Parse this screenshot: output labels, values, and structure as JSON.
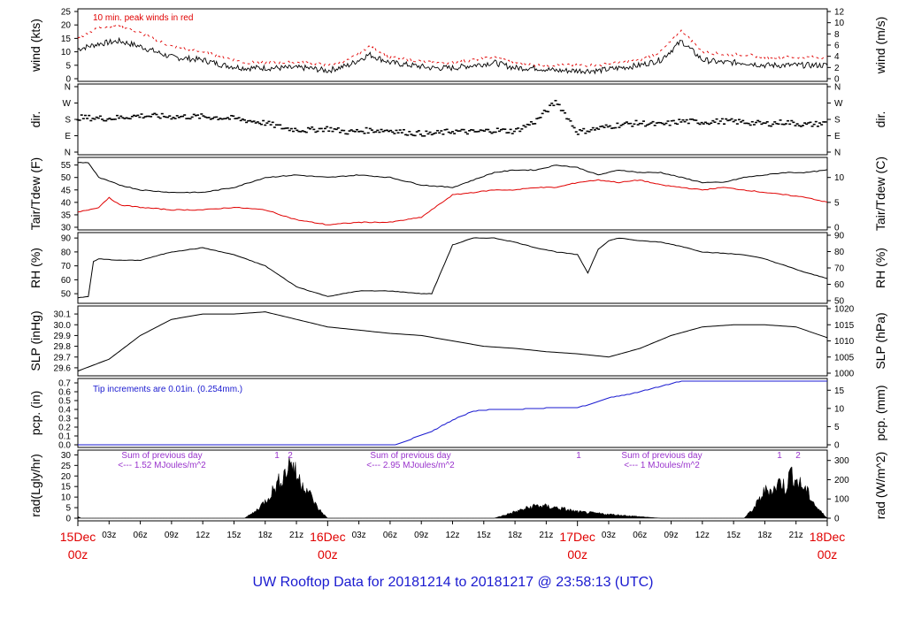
{
  "footer": "UW Rooftop Data for 20181214  to  20181217 @ 23:58:13  (UTC)",
  "colors": {
    "series": "#000000",
    "peak": "#e00000",
    "dew": "#e00000",
    "pcp": "#1a1ad0",
    "rad_note": "#9933cc",
    "day_label": "#e00000",
    "footer": "#1a1ad0"
  },
  "x_axis": {
    "hour_ticks": [
      "03z",
      "06z",
      "09z",
      "12z",
      "15z",
      "18z",
      "21z",
      "03z",
      "06z",
      "09z",
      "12z",
      "15z",
      "18z",
      "21z",
      "03z",
      "06z",
      "09z",
      "12z",
      "15z",
      "18z",
      "21z"
    ],
    "day_labels": [
      {
        "day": "15Dec",
        "hour": "00z"
      },
      {
        "day": "16Dec",
        "hour": "00z"
      },
      {
        "day": "17Dec",
        "hour": "00z"
      },
      {
        "day": "18Dec",
        "hour": "00z"
      }
    ]
  },
  "chart_data": [
    {
      "type": "line",
      "panel": "wind",
      "ylabel_left": "wind (kts)",
      "ylabel_right": "wind (m/s)",
      "ylim": [
        0,
        25
      ],
      "yticks_left": [
        "0",
        "5",
        "10",
        "15",
        "20",
        "25"
      ],
      "yticks_right": [
        "0",
        "2",
        "4",
        "6",
        "8",
        "10",
        "12"
      ],
      "annotation": "10 min. peak winds in red",
      "series": [
        {
          "x": [
            0,
            2,
            4,
            6,
            9,
            12,
            14,
            16,
            18,
            20,
            22,
            24,
            26,
            28,
            30,
            32,
            34,
            36,
            38,
            40,
            42,
            44,
            46,
            48,
            50,
            52,
            54,
            56,
            58,
            60,
            62,
            64,
            66,
            68,
            70,
            72
          ],
          "values": [
            11,
            13,
            14,
            12,
            8,
            7,
            5,
            4,
            4,
            4,
            4,
            3,
            5,
            9,
            6,
            5,
            4,
            4,
            5,
            6,
            4,
            4,
            3,
            3,
            3,
            4,
            5,
            7,
            14,
            7,
            6,
            6,
            5,
            5,
            5,
            5
          ]
        },
        {
          "x": [
            0,
            2,
            4,
            6,
            9,
            12,
            14,
            16,
            18,
            20,
            22,
            24,
            26,
            28,
            30,
            32,
            34,
            36,
            38,
            40,
            42,
            44,
            46,
            48,
            50,
            52,
            54,
            56,
            58,
            60,
            62,
            64,
            66,
            68,
            70,
            72
          ],
          "values": [
            15,
            19,
            20,
            17,
            12,
            10,
            8,
            6,
            6,
            6,
            6,
            5,
            7,
            12,
            8,
            7,
            6,
            6,
            7,
            8,
            6,
            5,
            5,
            5,
            5,
            6,
            7,
            10,
            18,
            10,
            9,
            9,
            8,
            8,
            8,
            8
          ]
        }
      ]
    },
    {
      "type": "scatter",
      "panel": "dir",
      "ylabel_left": "dir.",
      "ylabel_right": "dir.",
      "ylim": [
        0,
        360
      ],
      "yticks_left": [
        "N",
        "E",
        "S",
        "W",
        "N"
      ],
      "yticks_right": [
        "N",
        "E",
        "S",
        "W",
        "N"
      ],
      "series": [
        {
          "x": [
            0,
            3,
            6,
            9,
            12,
            15,
            18,
            20,
            22,
            24,
            26,
            28,
            30,
            32,
            34,
            36,
            38,
            40,
            42,
            44,
            46,
            48,
            50,
            52,
            54,
            56,
            58,
            60,
            62,
            64,
            66,
            68,
            70,
            72
          ],
          "values": [
            190,
            185,
            200,
            195,
            195,
            185,
            160,
            130,
            120,
            130,
            110,
            120,
            120,
            105,
            100,
            115,
            110,
            120,
            115,
            170,
            280,
            110,
            130,
            150,
            160,
            150,
            170,
            165,
            170,
            165,
            155,
            165,
            150,
            160
          ]
        }
      ]
    },
    {
      "type": "line",
      "panel": "temp",
      "ylabel_left": "Tair/Tdew (F)",
      "ylabel_right": "Tair/Tdew (C)",
      "ylim": [
        30,
        57
      ],
      "yticks_left": [
        "30",
        "35",
        "40",
        "45",
        "50",
        "55"
      ],
      "yticks_right": [
        "0",
        "5",
        "10"
      ],
      "series": [
        {
          "x": [
            0,
            1,
            2,
            4,
            6,
            9,
            12,
            15,
            18,
            21,
            24,
            27,
            30,
            33,
            36,
            38,
            40,
            42,
            44,
            46,
            48,
            50,
            52,
            54,
            56,
            58,
            60,
            62,
            64,
            66,
            68,
            70,
            72
          ],
          "values": [
            56,
            56,
            50,
            47,
            45,
            44,
            44,
            46,
            50,
            51,
            50,
            51,
            50,
            47,
            46,
            49,
            52,
            53,
            53,
            55,
            54,
            51,
            53,
            52,
            52,
            50,
            48,
            48,
            50,
            51,
            52,
            52,
            53
          ]
        },
        {
          "x": [
            0,
            1,
            2,
            3,
            4,
            6,
            9,
            12,
            15,
            18,
            21,
            24,
            27,
            30,
            33,
            36,
            38,
            40,
            42,
            44,
            46,
            48,
            50,
            52,
            54,
            56,
            58,
            60,
            62,
            64,
            66,
            68,
            70,
            72
          ],
          "values": [
            36,
            37,
            38,
            42,
            39,
            38,
            37,
            37,
            38,
            37,
            33,
            31,
            32,
            32,
            34,
            43,
            44,
            45,
            45,
            46,
            46,
            48,
            49,
            48,
            49,
            47,
            46,
            45,
            46,
            45,
            44,
            43,
            42,
            40
          ]
        }
      ]
    },
    {
      "type": "line",
      "panel": "rh",
      "ylabel_left": "RH (%)",
      "ylabel_right": "RH (%)",
      "ylim": [
        45,
        92
      ],
      "yticks_left": [
        "50",
        "60",
        "70",
        "80",
        "90"
      ],
      "yticks_right": [
        "50",
        "60",
        "70",
        "80",
        "90"
      ],
      "series": [
        {
          "x": [
            0,
            1,
            1.5,
            2,
            4,
            6,
            9,
            12,
            15,
            18,
            21,
            24,
            27,
            30,
            33,
            34,
            36,
            38,
            40,
            42,
            44,
            46,
            48,
            49,
            50,
            51,
            52,
            54,
            56,
            58,
            60,
            62,
            64,
            66,
            68,
            70,
            72
          ],
          "values": [
            47,
            48,
            73,
            75,
            74,
            74,
            80,
            83,
            78,
            70,
            55,
            48,
            52,
            52,
            50,
            50,
            85,
            90,
            90,
            87,
            83,
            80,
            78,
            65,
            82,
            88,
            90,
            88,
            87,
            84,
            80,
            79,
            78,
            75,
            70,
            65,
            61
          ]
        }
      ]
    },
    {
      "type": "line",
      "panel": "slp",
      "ylabel_left": "SLP (inHg)",
      "ylabel_right": "SLP (hPa)",
      "ylim": [
        29.55,
        30.15
      ],
      "yticks_left": [
        "29.6",
        "29.7",
        "29.8",
        "29.9",
        "30.0",
        "30.1"
      ],
      "yticks_right": [
        "1000",
        "1005",
        "1010",
        "1015",
        "1020"
      ],
      "series": [
        {
          "x": [
            0,
            3,
            6,
            9,
            12,
            15,
            18,
            21,
            24,
            27,
            30,
            33,
            36,
            39,
            42,
            45,
            48,
            51,
            54,
            57,
            60,
            63,
            66,
            69,
            72
          ],
          "values": [
            29.57,
            29.68,
            29.9,
            30.05,
            30.1,
            30.1,
            30.12,
            30.05,
            29.98,
            29.95,
            29.92,
            29.9,
            29.85,
            29.8,
            29.78,
            29.75,
            29.73,
            29.7,
            29.78,
            29.9,
            29.98,
            30.0,
            30.0,
            29.98,
            29.88
          ]
        }
      ]
    },
    {
      "type": "line",
      "panel": "pcp",
      "ylabel_left": "pcp. (in)",
      "ylabel_right": "pcp. (mm)",
      "ylim": [
        0,
        0.72
      ],
      "yticks_left": [
        "0.0",
        "0.1",
        "0.2",
        "0.3",
        "0.4",
        "0.5",
        "0.6",
        "0.7"
      ],
      "yticks_right": [
        "0",
        "5",
        "10",
        "15"
      ],
      "annotation": "Tip increments are 0.01in. (0.254mm.)",
      "series": [
        {
          "x": [
            0,
            30.5,
            34,
            36,
            38,
            40,
            42,
            44,
            46,
            48,
            49,
            50,
            51,
            52,
            54,
            56,
            58,
            60,
            61,
            62,
            64,
            66,
            68,
            70,
            72
          ],
          "values": [
            0.0,
            0.0,
            0.15,
            0.28,
            0.38,
            0.4,
            0.4,
            0.41,
            0.42,
            0.42,
            0.45,
            0.49,
            0.53,
            0.55,
            0.6,
            0.66,
            0.72,
            0.72,
            0.72,
            0.72,
            0.72,
            0.72,
            0.72,
            0.72,
            0.72
          ]
        }
      ]
    },
    {
      "type": "area",
      "panel": "rad",
      "ylabel_left": "rad(Lgly/hr)",
      "ylabel_right": "rad (W/m^2)",
      "ylim": [
        0,
        31
      ],
      "yticks_left": [
        "0",
        "5",
        "10",
        "15",
        "20",
        "25",
        "30"
      ],
      "yticks_right": [
        "0",
        "100",
        "200",
        "300"
      ],
      "annotations": [
        {
          "line1": "Sum of previous day",
          "line2": "<--- 1.52 MJoules/m^2"
        },
        {
          "line1": "Sum of previous day",
          "line2": "<--- 2.95 MJoules/m^2"
        },
        {
          "line1": "Sum of previous day",
          "line2": "<--- 1 MJoules/m^2"
        }
      ],
      "markers": [
        "1",
        "2",
        "1",
        "1",
        "2"
      ],
      "series": [
        {
          "x": [
            0,
            0.3,
            16,
            17,
            18,
            19,
            20,
            20.5,
            21,
            22,
            23,
            24,
            40,
            42,
            44,
            46,
            48,
            56,
            64,
            65,
            66,
            67,
            67.5,
            68,
            68.5,
            69,
            70,
            71,
            72
          ],
          "values": [
            1,
            0,
            0,
            3,
            8,
            15,
            22,
            28,
            20,
            14,
            5,
            0,
            0,
            3,
            6,
            5,
            3,
            0,
            0,
            5,
            13,
            14,
            18,
            14,
            22,
            18,
            13,
            5,
            0
          ]
        }
      ]
    }
  ]
}
